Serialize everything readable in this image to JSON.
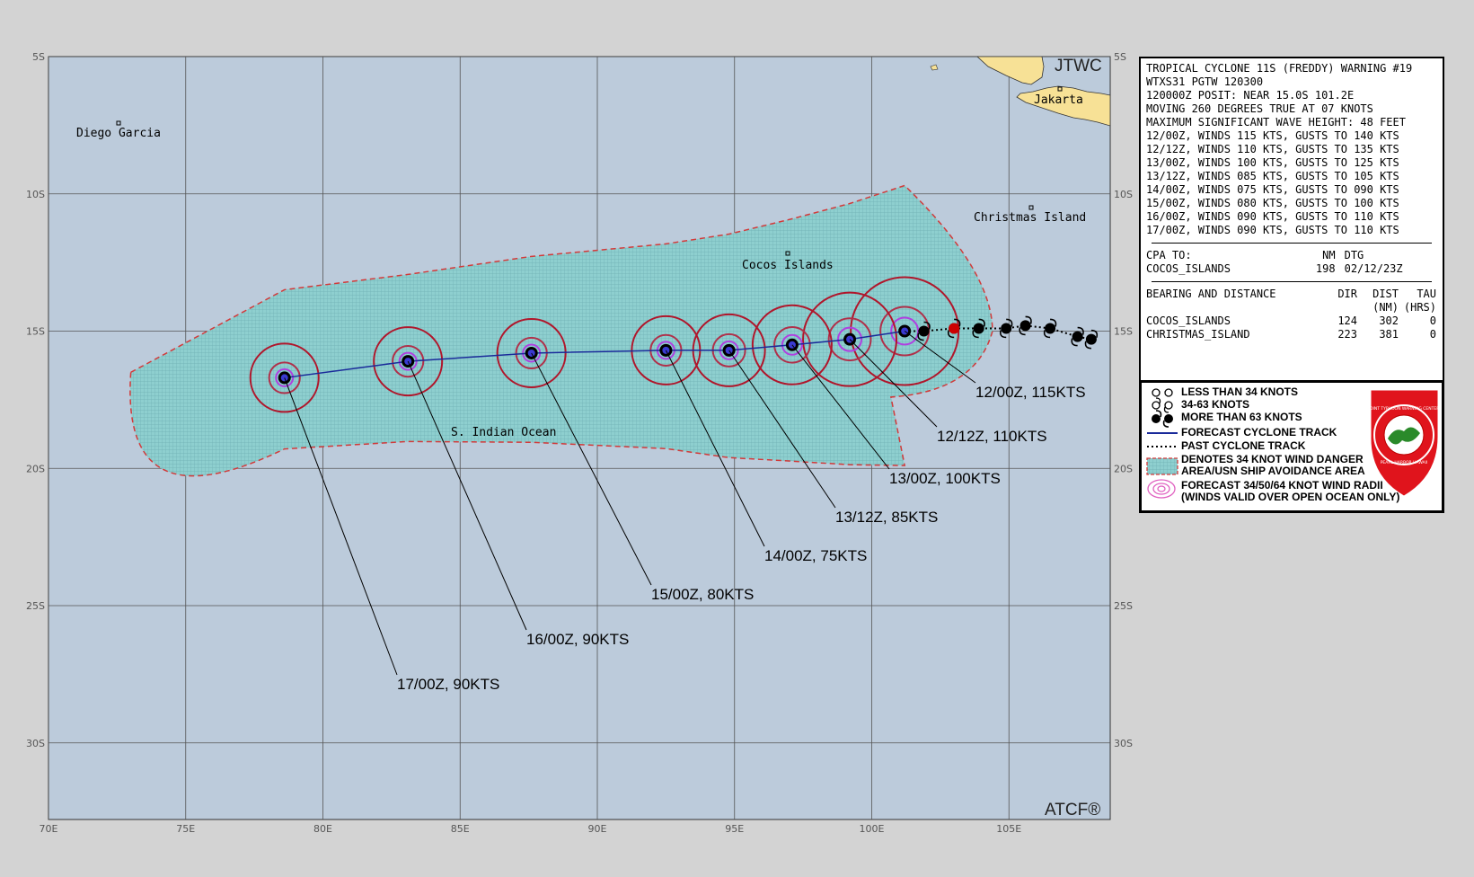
{
  "map": {
    "corner_tr": "JTWC",
    "corner_br": "ATCF®",
    "lat_labels": [
      "5S",
      "10S",
      "15S",
      "20S",
      "25S",
      "30S"
    ],
    "lon_labels": [
      "70E",
      "75E",
      "80E",
      "85E",
      "90E",
      "95E",
      "100E",
      "105E"
    ],
    "places": {
      "diego_garcia": "Diego Garcia",
      "jakarta": "Jakarta",
      "christmas_island": "Christmas Island",
      "cocos_islands": "Cocos Islands",
      "ocean": "S. Indian Ocean"
    },
    "forecast_labels": [
      "12/00Z, 115KTS",
      "12/12Z, 110KTS",
      "13/00Z, 100KTS",
      "13/12Z,  85KTS",
      "14/00Z,  75KTS",
      "15/00Z,  80KTS",
      "16/00Z,  90KTS",
      "17/00Z,  90KTS"
    ],
    "colors": {
      "ocean": "#bccbdb",
      "land": "#f7e196",
      "danger_area": "#8ecfcf",
      "danger_border": "#d23a3a",
      "radii_34": "#b0162b",
      "radii_50": "#b0304a",
      "radii_64": "#b040e0",
      "track": "#1a2a9a"
    },
    "forecast_points": [
      {
        "tau": "12/00Z",
        "lat": -15.0,
        "lon": 101.2,
        "kts": 115
      },
      {
        "tau": "12/12Z",
        "lat": -15.3,
        "lon": 99.2,
        "kts": 110
      },
      {
        "tau": "13/00Z",
        "lat": -15.5,
        "lon": 97.1,
        "kts": 100
      },
      {
        "tau": "13/12Z",
        "lat": -15.7,
        "lon": 94.8,
        "kts": 85
      },
      {
        "tau": "14/00Z",
        "lat": -15.7,
        "lon": 92.5,
        "kts": 75
      },
      {
        "tau": "15/00Z",
        "lat": -15.8,
        "lon": 87.6,
        "kts": 80
      },
      {
        "tau": "16/00Z",
        "lat": -16.1,
        "lon": 83.1,
        "kts": 90
      },
      {
        "tau": "17/00Z",
        "lat": -16.7,
        "lon": 78.6,
        "kts": 90
      }
    ],
    "past_points": [
      {
        "lat": -15.0,
        "lon": 101.9
      },
      {
        "lat": -14.9,
        "lon": 103.0
      },
      {
        "lat": -14.9,
        "lon": 103.9
      },
      {
        "lat": -14.9,
        "lon": 104.9
      },
      {
        "lat": -14.8,
        "lon": 105.6
      },
      {
        "lat": -14.9,
        "lon": 106.5
      },
      {
        "lat": -15.2,
        "lon": 107.5
      },
      {
        "lat": -15.3,
        "lon": 108.0
      }
    ]
  },
  "info": {
    "header_lines": [
      "TROPICAL CYCLONE 11S (FREDDY) WARNING #19",
      "WTXS31 PGTW 120300",
      "120000Z POSIT: NEAR 15.0S 101.2E",
      "MOVING 260 DEGREES TRUE AT 07 KNOTS",
      "MAXIMUM SIGNIFICANT WAVE HEIGHT: 48 FEET",
      "12/00Z, WINDS 115 KTS, GUSTS TO 140 KTS",
      "12/12Z, WINDS 110 KTS, GUSTS TO 135 KTS",
      "13/00Z, WINDS 100 KTS, GUSTS TO 125 KTS",
      "13/12Z, WINDS 085 KTS, GUSTS TO 105 KTS",
      "14/00Z, WINDS 075 KTS, GUSTS TO 090 KTS",
      "15/00Z, WINDS 080 KTS, GUSTS TO 100 KTS",
      "16/00Z, WINDS 090 KTS, GUSTS TO 110 KTS",
      "17/00Z, WINDS 090 KTS, GUSTS TO 110 KTS"
    ],
    "cpa": {
      "label": "CPA TO:",
      "col_nm": "NM",
      "col_dtg": "DTG",
      "place": "COCOS_ISLANDS",
      "nm": "198",
      "dtg": "02/12/23Z"
    },
    "bearing": {
      "title": "BEARING AND DISTANCE",
      "col_dir": "DIR",
      "col_dist": "DIST",
      "col_tau": "TAU",
      "unit_dist": "(NM)",
      "unit_tau": "(HRS)",
      "rows": [
        {
          "place": "COCOS_ISLANDS",
          "dir": "124",
          "dist": "302",
          "tau": "0"
        },
        {
          "place": "CHRISTMAS_ISLAND",
          "dir": "223",
          "dist": "381",
          "tau": "0"
        }
      ]
    }
  },
  "legend": {
    "items": [
      "LESS THAN 34 KNOTS",
      "34-63 KNOTS",
      "MORE THAN 63 KNOTS",
      "FORECAST CYCLONE TRACK",
      "PAST CYCLONE TRACK",
      "DENOTES 34 KNOT WIND DANGER\nAREA/USN SHIP AVOIDANCE AREA",
      "FORECAST 34/50/64 KNOT WIND RADII\n(WINDS VALID OVER OPEN OCEAN ONLY)"
    ],
    "seal_text_top": "JOINT TYPHOON WARNING CENTER",
    "seal_text_bottom": "PEARL HARBOR HAWAII"
  }
}
